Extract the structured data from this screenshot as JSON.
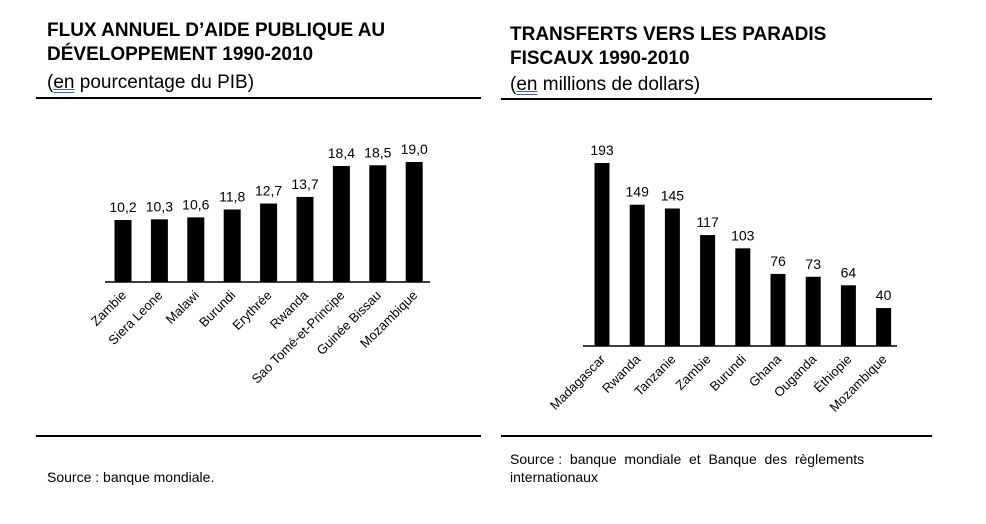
{
  "charts": {
    "left": {
      "title_line1": "FLUX ANNUEL D’AIDE PUBLIQUE AU",
      "title_line2": "DÉVELOPPEMENT 1990-2010",
      "subtitle_open": "(",
      "subtitle_underlined": "en",
      "subtitle_rest": " pourcentage du PIB)",
      "source": "Source : banque mondiale."
    },
    "right": {
      "title_line1": "TRANSFERTS VERS LES PARADIS",
      "title_line2": "FISCAUX 1990-2010",
      "subtitle_open": "(",
      "subtitle_underlined": "en",
      "subtitle_rest": " millions de dollars)",
      "source_line1": "Source :  banque  mondiale  et  Banque  des  règlements",
      "source_line2": "internationaux"
    }
  },
  "chart_data": [
    {
      "type": "bar",
      "title": "FLUX ANNUEL D’AIDE PUBLIQUE AU DÉVELOPPEMENT 1990-2010",
      "subtitle": "(en pourcentage du PIB)",
      "categories": [
        "Zambie",
        "Siera Leone",
        "Malawi",
        "Burundi",
        "Erythrée",
        "Rwanda",
        "Sao Tomé-et-Principe",
        "Guinée Bissau",
        "Mozambique"
      ],
      "values": [
        10.2,
        10.3,
        10.6,
        11.8,
        12.7,
        13.7,
        18.4,
        18.5,
        19.0
      ],
      "value_labels": [
        "10,2",
        "10,3",
        "10,6",
        "11,8",
        "12,7",
        "13,7",
        "18,4",
        "18,5",
        "19,0"
      ],
      "ylim": [
        0,
        19
      ],
      "grid": false,
      "bar_color": "#000000"
    },
    {
      "type": "bar",
      "title": "TRANSFERTS VERS LES PARADIS FISCAUX 1990-2010",
      "subtitle": "(en millions de dollars)",
      "categories": [
        "Madagascar",
        "Rwanda",
        "Tanzanie",
        "Zambie",
        "Burundi",
        "Ghana",
        "Ouganda",
        "Éthiopie",
        "Mozambique"
      ],
      "values": [
        193,
        149,
        145,
        117,
        103,
        76,
        73,
        64,
        40
      ],
      "value_labels": [
        "193",
        "149",
        "145",
        "117",
        "103",
        "76",
        "73",
        "64",
        "40"
      ],
      "ylim": [
        0,
        193
      ],
      "grid": false,
      "bar_color": "#000000"
    }
  ]
}
